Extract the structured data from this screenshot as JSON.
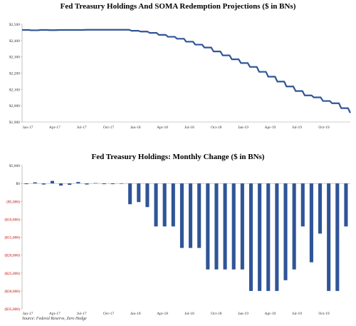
{
  "source": "Source: Federal Reserve, Zero Hedge",
  "chart_data": [
    {
      "type": "line",
      "title": "Fed Treasury Holdings And SOMA Redemption Projections ($ in BNs)",
      "ylim": [
        1900,
        2500
      ],
      "yticks": [
        {
          "value": 2500,
          "label": "$2,500"
        },
        {
          "value": 2400,
          "label": "$2,400"
        },
        {
          "value": 2300,
          "label": "$2,300"
        },
        {
          "value": 2200,
          "label": "$2,200"
        },
        {
          "value": 2100,
          "label": "$2,100"
        },
        {
          "value": 2000,
          "label": "$2,000"
        },
        {
          "value": 1900,
          "label": "$1,900"
        }
      ],
      "xticks": [
        "Jan-17",
        "Apr-17",
        "Jul-17",
        "Oct-17",
        "Jan-18",
        "Apr-18",
        "Jul-18",
        "Oct-18",
        "Jan-19",
        "Apr-19",
        "Jul-19",
        "Oct-19"
      ],
      "color": "#2f5597",
      "values": [
        2465,
        2463,
        2465,
        2464,
        2465,
        2465,
        2465,
        2466,
        2466,
        2466,
        2466,
        2466,
        2460,
        2455,
        2447,
        2435,
        2423,
        2411,
        2393,
        2375,
        2357,
        2333,
        2309,
        2285,
        2262,
        2238,
        2208,
        2178,
        2148,
        2118,
        2090,
        2063,
        2051,
        2029,
        2015,
        1985,
        1956
      ]
    },
    {
      "type": "bar",
      "title": "Fed Treasury Holdings: Monthly Change ($ in BNs)",
      "ylim": [
        -35000,
        5000
      ],
      "yticks": [
        {
          "value": 5000,
          "label": "$5,000"
        },
        {
          "value": 0,
          "label": "$0"
        },
        {
          "value": -5000,
          "label": "($5,000)"
        },
        {
          "value": -10000,
          "label": "($10,000)"
        },
        {
          "value": -15000,
          "label": "($15,000)"
        },
        {
          "value": -20000,
          "label": "($20,000)"
        },
        {
          "value": -25000,
          "label": "($25,000)"
        },
        {
          "value": -30000,
          "label": "($30,000)"
        },
        {
          "value": -35000,
          "label": "($35,000)"
        }
      ],
      "xticks": [
        "Jan-17",
        "Apr-17",
        "Jul-17",
        "Oct-17",
        "Jan-18",
        "Apr-18",
        "Jul-18",
        "Oct-18",
        "Jan-19",
        "Apr-19",
        "Jul-19",
        "Oct-19"
      ],
      "color": "#2f5597",
      "values": [
        -200,
        300,
        -300,
        700,
        -600,
        -400,
        400,
        -300,
        100,
        -200,
        -200,
        -100,
        -5800,
        -5200,
        -6600,
        -12000,
        -12000,
        -12000,
        -18000,
        -18000,
        -18000,
        -24000,
        -24000,
        -24000,
        -24000,
        -24000,
        -30000,
        -30000,
        -30000,
        -30000,
        -27000,
        -24000,
        -12000,
        -22000,
        -14000,
        -30000,
        -30000,
        -12000
      ]
    }
  ]
}
